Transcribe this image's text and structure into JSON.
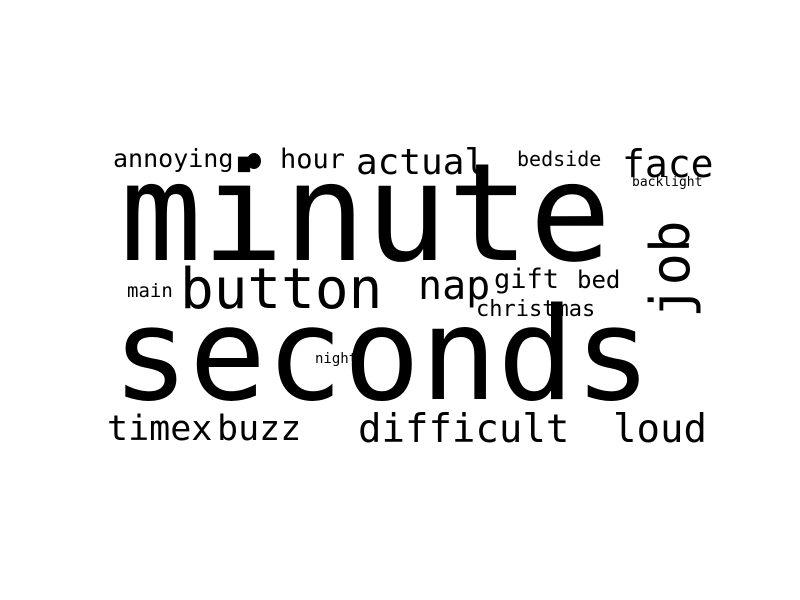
{
  "word_cloud": {
    "words": {
      "minute": "minute",
      "seconds": "seconds",
      "button": "button",
      "job": "job",
      "face": "face",
      "actual": "actual",
      "annoying": "annoying",
      "hour": "hour",
      "bedside": "bedside",
      "backlight": "backlight",
      "main": "main",
      "nap": "nap",
      "gift": "gift",
      "bed": "bed",
      "christmas": "christmas",
      "night": "night",
      "timex": "timex",
      "buzz": "buzz",
      "difficult": "difficult",
      "loud": "loud"
    },
    "text_color": "#000000",
    "background_color": "#ffffff"
  }
}
